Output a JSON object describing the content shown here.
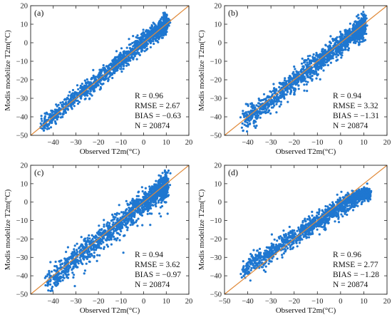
{
  "chart_data": [
    {
      "type": "scatter",
      "panel": "(a)",
      "xlabel": "Observed T2m(°C)",
      "ylabel": "Modis modelize T2m(°C)",
      "xlim": [
        -50,
        20
      ],
      "ylim": [
        -50,
        20
      ],
      "xticks": [
        -40,
        -30,
        -20,
        -10,
        0,
        10,
        20
      ],
      "yticks": [
        -50,
        -40,
        -30,
        -20,
        -10,
        0,
        10,
        20
      ],
      "x_range": [
        -45,
        10
      ],
      "stats": {
        "R": "R = 0.96",
        "RMSE": "RMSE = 2.67",
        "BIAS": "BIAS = −0.63",
        "N": "N = 20874"
      },
      "reference_line": "1:1"
    },
    {
      "type": "scatter",
      "panel": "(b)",
      "xlabel": "Observed T2m(°C)",
      "ylabel": "Modis modelize T2m(°C)",
      "xlim": [
        -50,
        20
      ],
      "ylim": [
        -50,
        20
      ],
      "xticks": [
        -40,
        -30,
        -20,
        -10,
        0,
        10,
        20
      ],
      "yticks": [
        -50,
        -40,
        -30,
        -20,
        -10,
        0,
        10,
        20
      ],
      "x_range": [
        -42,
        10
      ],
      "stats": {
        "R": "R = 0.94",
        "RMSE": "RMSE = 3.32",
        "BIAS": "BIAS = −1.31",
        "N": "N = 20874"
      },
      "reference_line": "1:1"
    },
    {
      "type": "scatter",
      "panel": "(c)",
      "xlabel": "Observed T2m(°C)",
      "ylabel": "Modis modelize T2m(°C)",
      "xlim": [
        -50,
        20
      ],
      "ylim": [
        -50,
        20
      ],
      "xticks": [
        -40,
        -30,
        -20,
        -10,
        0,
        10,
        20
      ],
      "yticks": [
        -50,
        -40,
        -30,
        -20,
        -10,
        0,
        10,
        20
      ],
      "x_range": [
        -43,
        10
      ],
      "stats": {
        "R": "R = 0.94",
        "RMSE": "RMSE = 3.62",
        "BIAS": "BIAS = −0.97",
        "N": "N = 20874"
      },
      "reference_line": "1:1"
    },
    {
      "type": "scatter",
      "panel": "(d)",
      "xlabel": "Observed T2m(°C)",
      "ylabel": "Modis modelize T2m(°C)",
      "xlim": [
        -50,
        20
      ],
      "ylim": [
        -50,
        20
      ],
      "xticks": [
        -50,
        -40,
        -30,
        -20,
        -10,
        0,
        10,
        20
      ],
      "yticks": [
        -50,
        -40,
        -30,
        -20,
        -10,
        0,
        10,
        20
      ],
      "x_range": [
        -42,
        12
      ],
      "stats": {
        "R": "R = 0.96",
        "RMSE": "RMSE = 2.77",
        "BIAS": "BIAS = −1.28",
        "N": "N = 20874"
      },
      "reference_line": "1:1"
    }
  ],
  "colors": {
    "points": "#1f77d0",
    "line": "#e08a3a",
    "axis": "#222222"
  }
}
